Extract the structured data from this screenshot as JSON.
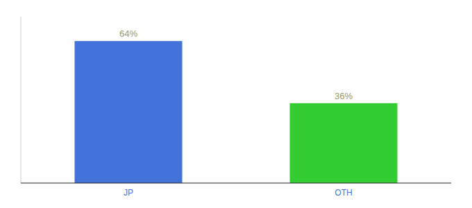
{
  "chart_data": {
    "type": "bar",
    "categories": [
      "JP",
      "OTH"
    ],
    "values": [
      64,
      36
    ],
    "colors": [
      "#4472db",
      "#33cc33"
    ],
    "ylim": [
      0,
      75
    ],
    "data_labels": true,
    "value_labels": [
      "64%",
      "36%"
    ],
    "tick_labels": "x",
    "grid": false
  }
}
